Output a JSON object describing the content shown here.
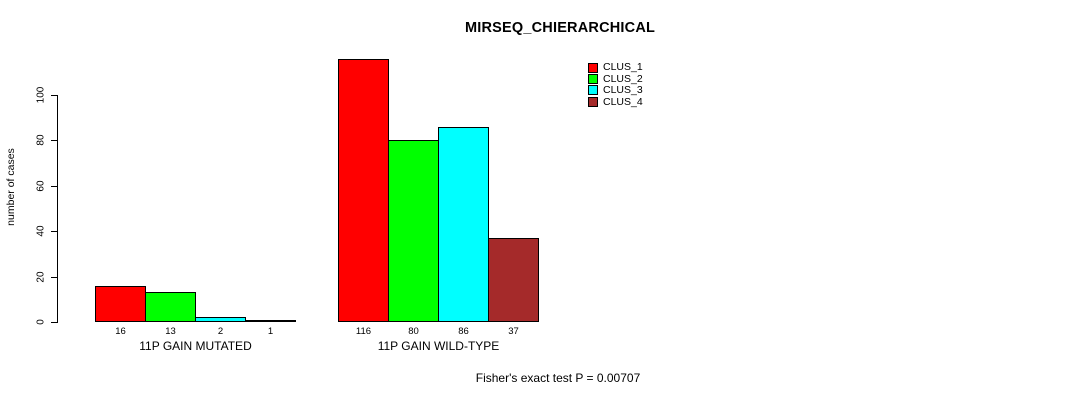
{
  "chart_data": {
    "type": "bar",
    "title": "MIRSEQ_CHIERARCHICAL",
    "ylabel": "number of cases",
    "xlabel": "",
    "ylim": [
      0,
      120
    ],
    "yticks": [
      0,
      20,
      40,
      60,
      80,
      100
    ],
    "categories": [
      "11P GAIN MUTATED",
      "11P GAIN WILD-TYPE"
    ],
    "series": [
      {
        "name": "CLUS_1",
        "color": "#ff0000",
        "values": [
          16,
          116
        ]
      },
      {
        "name": "CLUS_2",
        "color": "#00ff00",
        "values": [
          13,
          80
        ]
      },
      {
        "name": "CLUS_3",
        "color": "#00ffff",
        "values": [
          2,
          86
        ]
      },
      {
        "name": "CLUS_4",
        "color": "#a52a2a",
        "values": [
          1,
          37
        ]
      }
    ],
    "bar_value_labels": [
      [
        "16",
        "13",
        "2",
        "1"
      ],
      [
        "116",
        "80",
        "86",
        "37"
      ]
    ],
    "legend_position": "top-right",
    "grid": false,
    "annotation": "Fisher's exact test P = 0.00707",
    "bar_border_color": "#000000",
    "background_color": "#ffffff"
  }
}
